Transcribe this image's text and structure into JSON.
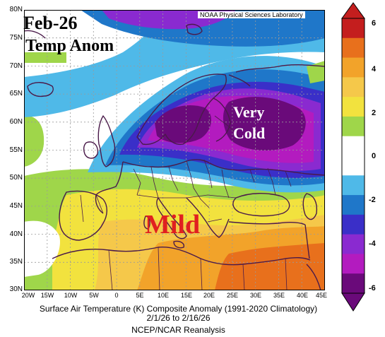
{
  "credit": "NOAA Physical Sciences Laboratory",
  "title_overlay": {
    "line1": "Feb-26",
    "line2": "Temp Anom"
  },
  "annotations": {
    "cold_line1": "Very",
    "cold_line2": "Cold",
    "mild": "Mild"
  },
  "lat_labels": [
    "80N",
    "75N",
    "70N",
    "65N",
    "60N",
    "55N",
    "50N",
    "45N",
    "40N",
    "35N",
    "30N"
  ],
  "lon_labels": [
    "20W",
    "15W",
    "10W",
    "5W",
    "0",
    "5E",
    "10E",
    "15E",
    "20E",
    "25E",
    "30E",
    "35E",
    "40E",
    "45E"
  ],
  "caption": {
    "line1": "Surface Air Temperature (K) Composite Anomaly (1991-2020 Climatology)",
    "line2": "2/1/26  to 2/16/26",
    "line3": "NCEP/NCAR Reanalysis"
  },
  "colorbar": {
    "labels": [
      "6",
      "4",
      "2",
      "0",
      "-2",
      "-4",
      "-6"
    ],
    "colors": [
      "#c41e1e",
      "#e8701c",
      "#f2a32a",
      "#f5c84a",
      "#f2e23e",
      "#9fd64a",
      "#ffffff",
      "#ffffff",
      "#4fb9e8",
      "#1f77c9",
      "#3a2fc8",
      "#8a2ad0",
      "#b31bbf",
      "#6a0a7a"
    ]
  },
  "map_extent": {
    "lon": [
      -20,
      45
    ],
    "lat": [
      30,
      80
    ]
  }
}
